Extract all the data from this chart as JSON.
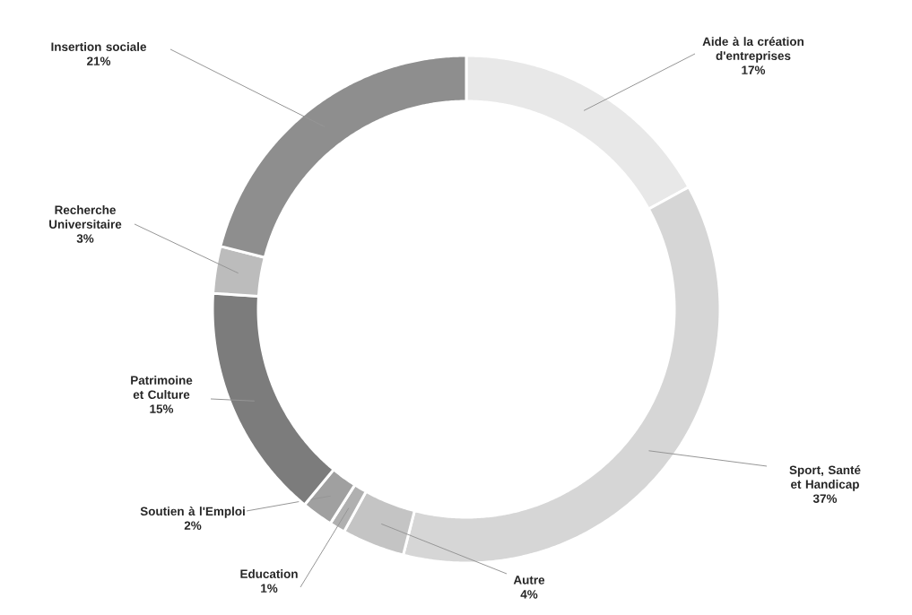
{
  "chart_data": {
    "type": "donut",
    "categories": [
      "Aide à la création d'entreprises",
      "Sport, Santé et Handicap",
      "Autre",
      "Education",
      "Soutien à l'Emploi",
      "Patrimoine et Culture",
      "Recherche Universitaire",
      "Insertion sociale"
    ],
    "values": [
      17,
      37,
      4,
      1,
      2,
      15,
      3,
      21
    ],
    "value_labels": [
      "17%",
      "37%",
      "4%",
      "1%",
      "2%",
      "15%",
      "3%",
      "21%"
    ],
    "colors": [
      "#e8e8e8",
      "#d6d6d6",
      "#c4c4c4",
      "#b0b0b0",
      "#a0a0a0",
      "#7c7c7c",
      "#bcbcbc",
      "#8e8e8e"
    ]
  }
}
